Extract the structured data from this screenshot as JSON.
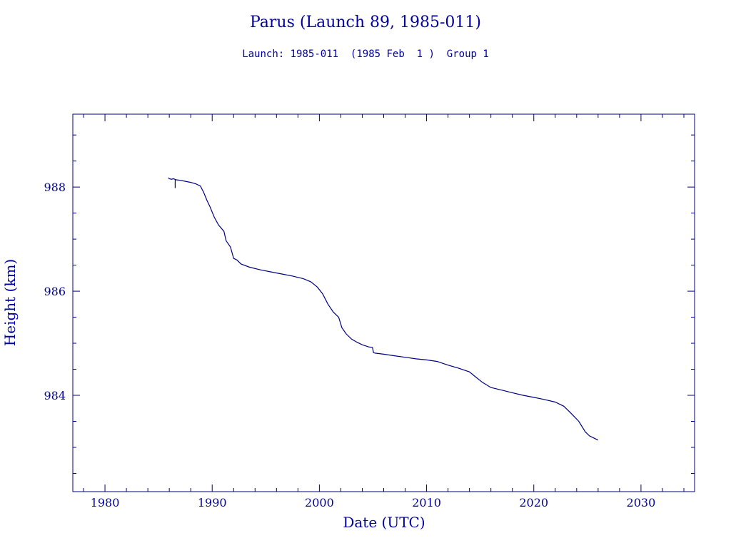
{
  "chart_data": {
    "type": "line",
    "title": "Parus (Launch 89, 1985-011)",
    "subtitle": "Launch: 1985-011  (1985 Feb  1 )  Group 1",
    "xlabel": "Date (UTC)",
    "ylabel": "Height (km)",
    "xlim": [
      1977,
      2035
    ],
    "ylim": [
      982.15,
      989.4
    ],
    "xticks": [
      1980,
      1990,
      2000,
      2010,
      2020,
      2030
    ],
    "xtick_labels": [
      "1980",
      "1990",
      "2000",
      "2010",
      "2020",
      "2030"
    ],
    "yticks": [
      984,
      986,
      988
    ],
    "ytick_labels": [
      "984",
      "986",
      "988"
    ],
    "grid": false,
    "color": "#000080",
    "series": [
      {
        "x": [
          1985.9,
          1986.0,
          1986.2,
          1986.4,
          1986.6,
          1987.0,
          1987.5,
          1988.0,
          1988.5,
          1988.9,
          1989.2,
          1989.5,
          1989.8,
          1990.2,
          1990.6,
          1991.1,
          1991.3,
          1991.7,
          1992.0,
          1992.3,
          1992.7,
          1993.5,
          1994.5,
          1995.5,
          1996.5,
          1997.5,
          1998.5,
          1999.2,
          1999.8,
          2000.3,
          2000.8,
          2001.3,
          2001.8,
          2002.1,
          2002.5,
          2003.0,
          2003.5,
          2004.0,
          2004.6,
          2004.95,
          2005.05,
          2005.2,
          2006.0,
          2007.0,
          2008.0,
          2009.0,
          2010.0,
          2011.0,
          2012.0,
          2013.0,
          2014.0,
          2014.6,
          2015.2,
          2016.0,
          2017.0,
          2018.0,
          2019.0,
          2020.0,
          2021.0,
          2022.0,
          2022.8,
          2023.5,
          2024.2,
          2024.8,
          2025.2,
          2025.6,
          2026.0
        ],
        "y": [
          988.18,
          988.16,
          988.15,
          988.16,
          988.14,
          988.13,
          988.11,
          988.09,
          988.06,
          988.02,
          987.9,
          987.75,
          987.62,
          987.42,
          987.27,
          987.15,
          986.97,
          986.85,
          986.63,
          986.6,
          986.52,
          986.46,
          986.41,
          986.37,
          986.33,
          986.29,
          986.24,
          986.18,
          986.08,
          985.95,
          985.75,
          985.6,
          985.5,
          985.3,
          985.18,
          985.08,
          985.02,
          984.97,
          984.93,
          984.92,
          984.82,
          984.81,
          984.79,
          984.76,
          984.73,
          984.7,
          984.68,
          984.65,
          984.58,
          984.52,
          984.45,
          984.35,
          984.25,
          984.15,
          984.1,
          984.05,
          984.0,
          983.96,
          983.92,
          983.87,
          983.79,
          983.65,
          983.5,
          983.3,
          983.22,
          983.18,
          983.14
        ]
      }
    ]
  }
}
